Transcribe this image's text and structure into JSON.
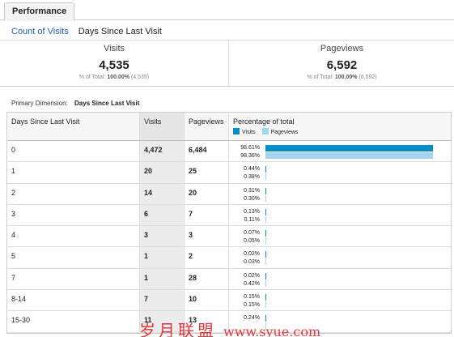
{
  "tab": {
    "label": "Performance"
  },
  "subtabs": {
    "count_of_visits": "Count of Visits",
    "days_since_last_visit": "Days Since Last Visit"
  },
  "summary": {
    "visits": {
      "title": "Visits",
      "value": "4,535",
      "pct_label": "% of Total:",
      "pct_value": "100.00%",
      "pct_total": "(4,535)"
    },
    "pageviews": {
      "title": "Pageviews",
      "value": "6,592",
      "pct_label": "% of Total:",
      "pct_value": "100.00%",
      "pct_total": "(6,592)"
    }
  },
  "primary_dimension": {
    "label": "Primary Dimension:",
    "value": "Days Since Last Visit"
  },
  "table": {
    "headers": {
      "dimension": "Days Since Last Visit",
      "visits": "Visits",
      "pageviews": "Pageviews",
      "percentage": "Percentage of total"
    },
    "legend": {
      "visits": "Visits",
      "pageviews": "Pageviews"
    },
    "colors": {
      "visits": "#058dc7",
      "pageviews": "#a4d5ec"
    },
    "rows": [
      {
        "dim": "0",
        "visits": "4,472",
        "pageviews": "6,484",
        "pct_visits": "98.61%",
        "pct_pageviews": "98.36%",
        "frac_visits": 0.9861,
        "frac_pageviews": 0.9836
      },
      {
        "dim": "1",
        "visits": "20",
        "pageviews": "25",
        "pct_visits": "0.44%",
        "pct_pageviews": "0.38%",
        "frac_visits": 0.0044,
        "frac_pageviews": 0.0038
      },
      {
        "dim": "2",
        "visits": "14",
        "pageviews": "20",
        "pct_visits": "0.31%",
        "pct_pageviews": "0.30%",
        "frac_visits": 0.0031,
        "frac_pageviews": 0.003
      },
      {
        "dim": "3",
        "visits": "6",
        "pageviews": "7",
        "pct_visits": "0.13%",
        "pct_pageviews": "0.11%",
        "frac_visits": 0.0013,
        "frac_pageviews": 0.0011
      },
      {
        "dim": "4",
        "visits": "3",
        "pageviews": "3",
        "pct_visits": "0.07%",
        "pct_pageviews": "0.05%",
        "frac_visits": 0.0007,
        "frac_pageviews": 0.0005
      },
      {
        "dim": "5",
        "visits": "1",
        "pageviews": "2",
        "pct_visits": "0.02%",
        "pct_pageviews": "0.03%",
        "frac_visits": 0.0002,
        "frac_pageviews": 0.0003
      },
      {
        "dim": "7",
        "visits": "1",
        "pageviews": "28",
        "pct_visits": "0.02%",
        "pct_pageviews": "0.42%",
        "frac_visits": 0.0002,
        "frac_pageviews": 0.0042
      },
      {
        "dim": "8-14",
        "visits": "7",
        "pageviews": "10",
        "pct_visits": "0.15%",
        "pct_pageviews": "0.15%",
        "frac_visits": 0.0015,
        "frac_pageviews": 0.0015
      },
      {
        "dim": "15-30",
        "visits": "11",
        "pageviews": "13",
        "pct_visits": "0.24%",
        "pct_pageviews": "",
        "frac_visits": 0.0024,
        "frac_pageviews": 0.002
      }
    ]
  },
  "watermark": {
    "text": "岁月联盟",
    "site": "www.syue.com"
  }
}
